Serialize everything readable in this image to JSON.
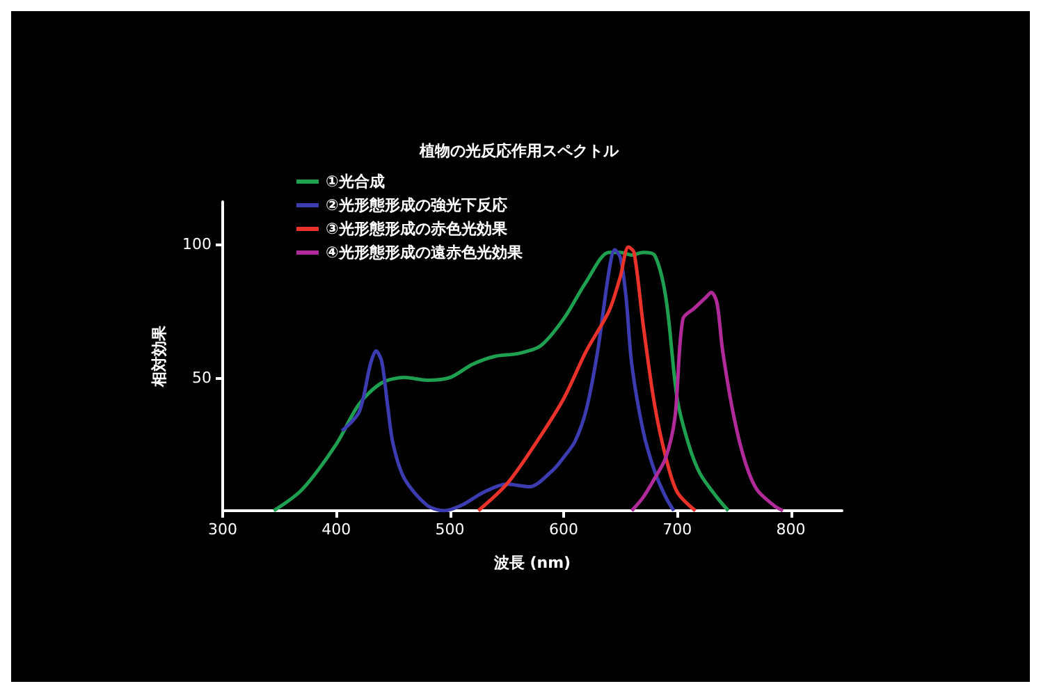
{
  "chart_data": {
    "type": "line",
    "title": "植物の光反応作用スペクトル",
    "xlabel": "波長 (nm)",
    "ylabel": "相対効果",
    "xlim": [
      300,
      845
    ],
    "xticks": [
      300,
      400,
      500,
      600,
      700,
      800
    ],
    "ylim": [
      0,
      116
    ],
    "yticks": [
      50,
      100
    ],
    "grid": false,
    "legend": "top left",
    "marker": "none",
    "line_style": "solid",
    "series": [
      {
        "name": "①光合成",
        "color": "#1fa050",
        "x": [
          345,
          370,
          400,
          420,
          440,
          460,
          480,
          500,
          520,
          540,
          560,
          580,
          600,
          620,
          640,
          650,
          660,
          670,
          680,
          690,
          700,
          710,
          720,
          735,
          745
        ],
        "values": [
          0,
          8,
          25,
          40,
          48,
          50,
          49,
          50,
          55,
          58,
          59,
          62,
          72,
          86,
          97,
          97,
          96,
          97,
          96,
          80,
          42,
          25,
          14,
          5,
          0
        ]
      },
      {
        "name": "②光形態形成の強光下反応",
        "color": "#3c3cb0",
        "x": [
          405,
          420,
          430,
          435,
          440,
          445,
          450,
          460,
          480,
          495,
          510,
          530,
          550,
          570,
          590,
          600,
          610,
          620,
          630,
          640,
          645,
          650,
          655,
          660,
          670,
          680,
          690,
          697
        ],
        "values": [
          30,
          37,
          55,
          60,
          56,
          40,
          25,
          12,
          2,
          0,
          2,
          7,
          10,
          9,
          15,
          20,
          26,
          38,
          60,
          90,
          98,
          95,
          80,
          55,
          30,
          15,
          5,
          0
        ]
      },
      {
        "name": "③光形態形成の赤色光効果",
        "color": "#e8322a",
        "x": [
          525,
          550,
          575,
          600,
          620,
          640,
          650,
          657,
          662,
          670,
          680,
          690,
          700,
          716
        ],
        "values": [
          0,
          10,
          25,
          42,
          60,
          75,
          88,
          99,
          97,
          70,
          40,
          20,
          7,
          0
        ]
      },
      {
        "name": "④光形態形成の遠赤色光効果",
        "color": "#b02a9a",
        "x": [
          660,
          670,
          680,
          690,
          698,
          705,
          715,
          725,
          730,
          735,
          740,
          750,
          760,
          770,
          785,
          793
        ],
        "values": [
          0,
          5,
          12,
          20,
          35,
          72,
          76,
          80,
          82,
          78,
          60,
          35,
          18,
          8,
          2,
          0
        ]
      }
    ]
  }
}
